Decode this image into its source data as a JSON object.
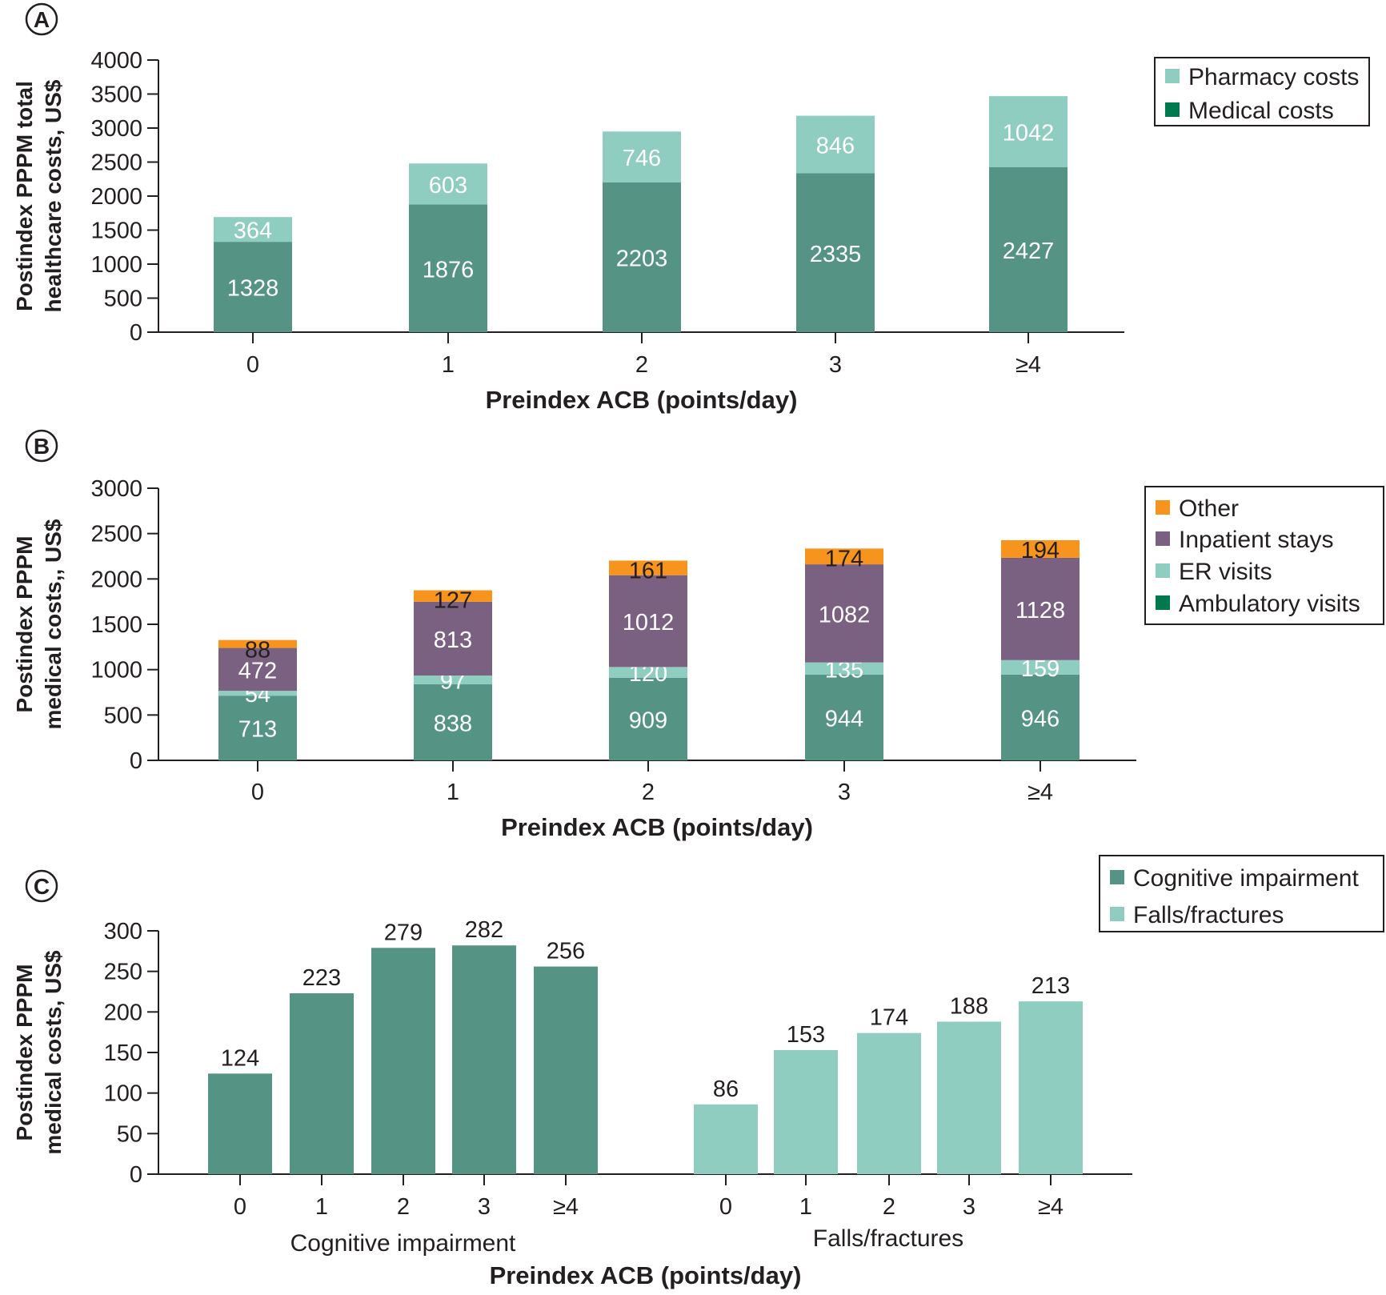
{
  "colors": {
    "dark_teal": "#559385",
    "light_teal": "#8fcdc0",
    "purple": "#7a6182",
    "orange": "#f7941d",
    "legend_medical": "#007a4d",
    "legend_ambulatory": "#007a4d",
    "axis": "#231f20"
  },
  "chart_data": [
    {
      "panel": "A",
      "type": "bar",
      "stacked": true,
      "xlabel": "Preindex ACB (points/day)",
      "ylabel_lines": [
        "Postindex PPPM total",
        "healthcare costs, US$"
      ],
      "ylim": [
        0,
        4000
      ],
      "yticks": [
        "0",
        "500",
        "1000",
        "1500",
        "2000",
        "2500",
        "3000",
        "3500",
        "4000"
      ],
      "categories": [
        "0",
        "1",
        "2",
        "3",
        "≥4"
      ],
      "series": [
        {
          "name": "Medical costs",
          "values": [
            1328,
            1876,
            2203,
            2335,
            2427
          ]
        },
        {
          "name": "Pharmacy costs",
          "values": [
            364,
            603,
            746,
            846,
            1042
          ]
        }
      ],
      "legend": [
        "Pharmacy costs",
        "Medical costs"
      ],
      "legend_position": "top-right"
    },
    {
      "panel": "B",
      "type": "bar",
      "stacked": true,
      "xlabel": "Preindex ACB (points/day)",
      "ylabel_lines": [
        "Postindex PPPM",
        "medical costs,, US$"
      ],
      "ylim": [
        0,
        3000
      ],
      "yticks": [
        "0",
        "500",
        "1000",
        "1500",
        "2000",
        "2500",
        "3000"
      ],
      "categories": [
        "0",
        "1",
        "2",
        "3",
        "≥4"
      ],
      "series": [
        {
          "name": "Ambulatory visits",
          "values": [
            713,
            838,
            909,
            944,
            946
          ]
        },
        {
          "name": "ER visits",
          "values": [
            54,
            97,
            120,
            135,
            159
          ]
        },
        {
          "name": "Inpatient stays",
          "values": [
            472,
            813,
            1012,
            1082,
            1128
          ]
        },
        {
          "name": "Other",
          "values": [
            88,
            127,
            161,
            174,
            194
          ]
        }
      ],
      "legend": [
        "Other",
        "Inpatient stays",
        "ER visits",
        "Ambulatory visits"
      ],
      "legend_position": "top-right"
    },
    {
      "panel": "C",
      "type": "bar",
      "stacked": false,
      "xlabel": "Preindex ACB (points/day)",
      "ylabel_lines": [
        "Postindex PPPM",
        "medical costs, US$"
      ],
      "ylim": [
        0,
        300
      ],
      "yticks": [
        "0",
        "50",
        "100",
        "150",
        "200",
        "250",
        "300"
      ],
      "groups": [
        {
          "name": "Cognitive impairment",
          "categories": [
            "0",
            "1",
            "2",
            "3",
            "≥4"
          ],
          "values": [
            124,
            223,
            279,
            282,
            256
          ]
        },
        {
          "name": "Falls/fractures",
          "categories": [
            "0",
            "1",
            "2",
            "3",
            "≥4"
          ],
          "values": [
            86,
            153,
            174,
            188,
            213
          ]
        }
      ],
      "legend": [
        "Cognitive impairment",
        "Falls/fractures"
      ],
      "legend_position": "top-right"
    }
  ]
}
